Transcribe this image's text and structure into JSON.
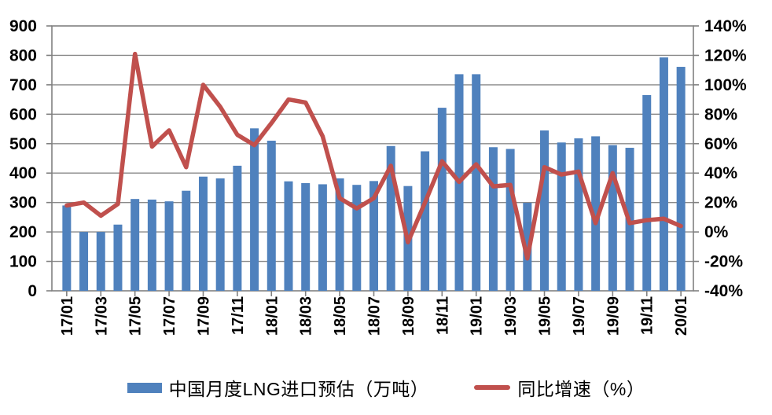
{
  "chart_data": {
    "type": "bar+line-combo",
    "title": "",
    "categories": [
      "17/01",
      "17/02",
      "17/03",
      "17/04",
      "17/05",
      "17/06",
      "17/07",
      "17/08",
      "17/09",
      "17/10",
      "17/11",
      "17/12",
      "18/01",
      "18/02",
      "18/03",
      "18/04",
      "18/05",
      "18/06",
      "18/07",
      "18/08",
      "18/09",
      "18/10",
      "18/11",
      "18/12",
      "19/01",
      "19/02",
      "19/03",
      "19/04",
      "19/05",
      "19/06",
      "19/07",
      "19/08",
      "19/09",
      "19/10",
      "19/11",
      "19/12",
      "20/01"
    ],
    "series": [
      {
        "name": "中国月度LNG进口预估（万吨）",
        "type": "bar",
        "axis": "left",
        "color": "#4F81BD",
        "values": [
          290,
          200,
          200,
          225,
          312,
          310,
          304,
          340,
          388,
          382,
          425,
          552,
          510,
          372,
          366,
          362,
          382,
          360,
          373,
          492,
          356,
          474,
          622,
          736,
          736,
          488,
          482,
          299,
          545,
          504,
          518,
          525,
          495,
          486,
          665,
          793,
          761
        ]
      },
      {
        "name": "同比增速（%）",
        "type": "line",
        "axis": "right",
        "color": "#C0504D",
        "values": [
          18,
          20,
          11,
          19,
          121,
          58,
          69,
          44,
          100,
          85,
          66,
          59,
          74,
          90,
          88,
          65,
          23,
          16,
          23,
          45,
          -7,
          20,
          48,
          34,
          46,
          31,
          32,
          -18,
          44,
          39,
          41,
          6,
          40,
          6,
          8,
          9,
          4
        ]
      }
    ],
    "left_axis": {
      "min": 0,
      "max": 900,
      "step": 100,
      "tick_labels": [
        "0",
        "100",
        "200",
        "300",
        "400",
        "500",
        "600",
        "700",
        "800",
        "900"
      ]
    },
    "right_axis": {
      "min": -40,
      "max": 140,
      "step": 20,
      "tick_labels": [
        "-40%",
        "-20%",
        "0%",
        "20%",
        "40%",
        "60%",
        "80%",
        "100%",
        "120%",
        "140%"
      ]
    },
    "x_tick_labels": [
      "17/01",
      "17/03",
      "17/05",
      "17/07",
      "17/09",
      "17/11",
      "18/01",
      "18/03",
      "18/05",
      "18/07",
      "18/09",
      "18/11",
      "19/01",
      "19/03",
      "19/05",
      "19/07",
      "19/09",
      "19/11",
      "20/01"
    ],
    "x_label_interval": 2,
    "grid": true,
    "legend_position": "bottom"
  },
  "legend": {
    "bar_label": "中国月度LNG进口预估（万吨）",
    "line_label": "同比增速（%）"
  },
  "colors": {
    "bar": "#4F81BD",
    "line": "#C0504D",
    "gridline": "#898989",
    "axis": "#808080",
    "text": "#000000",
    "background": "#ffffff"
  }
}
